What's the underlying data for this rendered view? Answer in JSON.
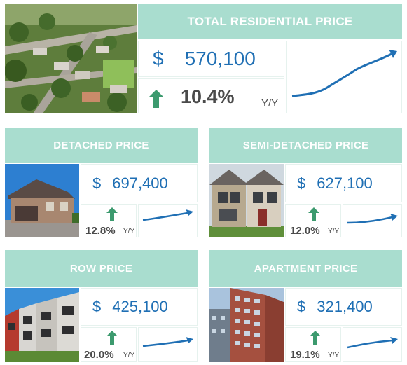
{
  "colors": {
    "header_bg": "#a9ddcf",
    "price_blue": "#1f6fb4",
    "arrow_green": "#3c9a6e",
    "text_dark": "#4a4a4a"
  },
  "total": {
    "title": "TOTAL RESIDENTIAL PRICE",
    "currency": "$",
    "price": "570,100",
    "change": "10.4%",
    "change_label": "Y/Y",
    "trend_icon": "arrow-up-icon",
    "image": "aerial-neighbourhood-photo"
  },
  "cards": [
    {
      "key": "detached",
      "title": "DETACHED PRICE",
      "currency": "$",
      "price": "697,400",
      "change": "12.8%",
      "change_label": "Y/Y",
      "trend_icon": "arrow-up-icon",
      "image": "detached-house-photo"
    },
    {
      "key": "semi",
      "title": "SEMI-DETACHED PRICE",
      "currency": "$",
      "price": "627,100",
      "change": "12.0%",
      "change_label": "Y/Y",
      "trend_icon": "arrow-up-icon",
      "image": "semi-detached-house-photo"
    },
    {
      "key": "row",
      "title": "ROW PRICE",
      "currency": "$",
      "price": "425,100",
      "change": "20.0%",
      "change_label": "Y/Y",
      "trend_icon": "arrow-up-icon",
      "image": "row-houses-photo"
    },
    {
      "key": "apartment",
      "title": "APARTMENT PRICE",
      "currency": "$",
      "price": "321,400",
      "change": "19.1%",
      "change_label": "Y/Y",
      "trend_icon": "arrow-up-icon",
      "image": "apartment-tower-photo"
    }
  ]
}
